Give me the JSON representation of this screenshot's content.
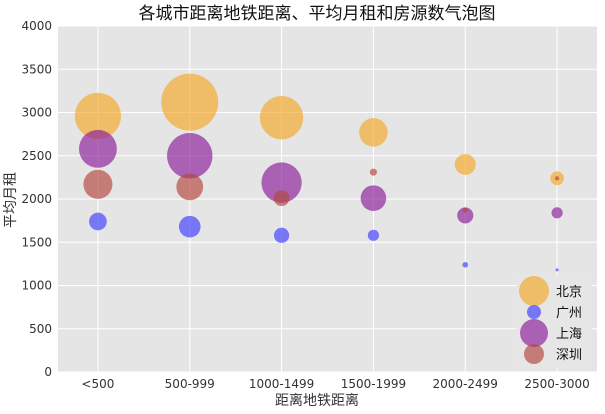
{
  "chart_data": {
    "type": "scatter",
    "title": "各城市距离地铁距离、平均月租和房源数气泡图",
    "xlabel": "距离地铁距离",
    "ylabel": "平均月租",
    "categories": [
      "<500",
      "500-999",
      "1000-1499",
      "1500-1999",
      "2000-2499",
      "2500-3000"
    ],
    "ylim": [
      0,
      4000
    ],
    "yticks": [
      "0",
      "500",
      "1000",
      "1500",
      "2000",
      "2500",
      "3000",
      "3500",
      "4000"
    ],
    "grid": true,
    "legend_position": "bottom-right",
    "series": [
      {
        "name": "北京",
        "color": "#f5a623",
        "values": [
          2960,
          3120,
          2940,
          2770,
          2400,
          2240
        ],
        "sizes": [
          340,
          520,
          300,
          130,
          70,
          30
        ]
      },
      {
        "name": "广州",
        "color": "#3b3bff",
        "values": [
          1740,
          1680,
          1580,
          1580,
          1240,
          1180
        ],
        "sizes": [
          50,
          75,
          37,
          20,
          5,
          1
        ]
      },
      {
        "name": "上海",
        "color": "#8b1a9a",
        "values": [
          2580,
          2500,
          2190,
          2010,
          1810,
          1840
        ],
        "sizes": [
          230,
          330,
          260,
          105,
          42,
          20
        ]
      },
      {
        "name": "深圳",
        "color": "#b3443a",
        "values": [
          2170,
          2140,
          2010,
          2310,
          1870,
          2240
        ],
        "sizes": [
          135,
          115,
          40,
          8,
          4,
          3
        ]
      }
    ]
  }
}
